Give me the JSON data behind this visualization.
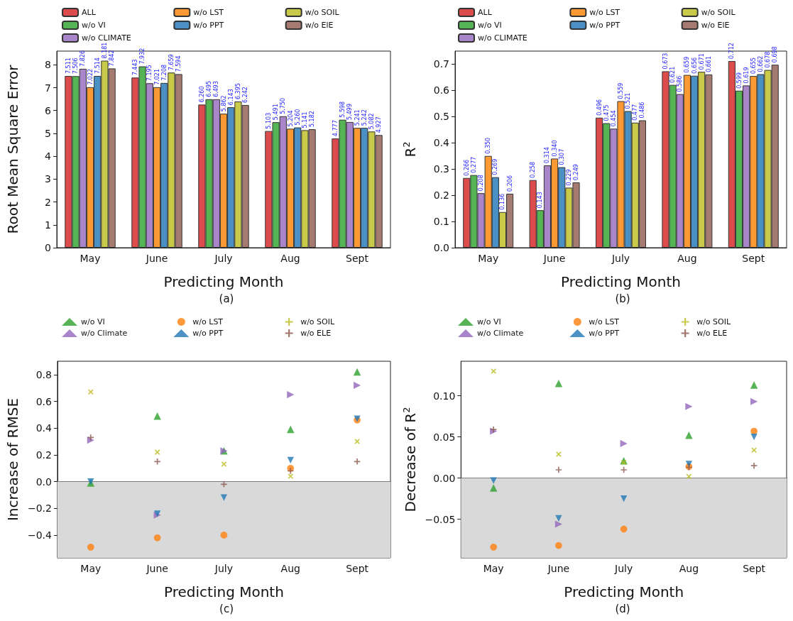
{
  "chart_data": [
    {
      "type": "bar",
      "xlabel": "Predicting Month",
      "ylabel": "Root Mean Square Error",
      "annotations": [
        "(a)"
      ],
      "categories": [
        "May",
        "June",
        "July",
        "Aug",
        "Sept"
      ],
      "ylim": [
        0,
        8.6
      ],
      "yticks": [
        0,
        1,
        2,
        3,
        4,
        5,
        6,
        7,
        8
      ],
      "legend": "top",
      "series": [
        {
          "name": "ALL",
          "color": "#dc4c4d",
          "values": [
            7.511,
            7.443,
            6.26,
            5.103,
            4.777
          ],
          "value_labels": [
            "7.511",
            "7.443",
            "6.260",
            "5.103",
            "4.777"
          ]
        },
        {
          "name": "w/o VI",
          "color": "#55b555",
          "values": [
            7.506,
            7.932,
            6.495,
            5.491,
            5.598
          ],
          "value_labels": [
            "7.506",
            "7.932",
            "6.495",
            "5.491",
            "5.598"
          ]
        },
        {
          "name": "w/o CLIMATE",
          "color": "#a985c9",
          "values": [
            7.826,
            7.195,
            6.493,
            5.75,
            5.499
          ],
          "value_labels": [
            "7.826",
            "7.195",
            "6.493",
            "5.750",
            "5.499"
          ]
        },
        {
          "name": "w/o LST",
          "color": "#ff9933",
          "values": [
            7.022,
            7.021,
            5.862,
            5.204,
            5.241
          ],
          "value_labels": [
            "7.022",
            "7.021",
            "5.862",
            "5.204",
            "5.241"
          ]
        },
        {
          "name": "w/o PPT",
          "color": "#4a90c4",
          "values": [
            7.514,
            7.208,
            6.143,
            5.26,
            5.242
          ],
          "value_labels": [
            "7.514",
            "7.208",
            "6.143",
            "5.260",
            "5.242"
          ]
        },
        {
          "name": "w/o SOIL",
          "color": "#c9c94a",
          "values": [
            8.181,
            7.659,
            6.395,
            5.141,
            5.082
          ],
          "value_labels": [
            "8.181",
            "7.659",
            "6.395",
            "5.141",
            "5.082"
          ]
        },
        {
          "name": "w/o ElE",
          "color": "#a57a70",
          "values": [
            7.842,
            7.594,
            6.242,
            5.182,
            4.927
          ],
          "value_labels": [
            "7.842",
            "7.594",
            "6.242",
            "5.182",
            "4.927"
          ]
        }
      ]
    },
    {
      "type": "bar",
      "xlabel": "Predicting Month",
      "ylabel": "R$^{2}$",
      "annotations": [
        "(b)"
      ],
      "categories": [
        "May",
        "June",
        "July",
        "Aug",
        "Sept"
      ],
      "ylim": [
        0,
        0.75
      ],
      "yticks": [
        {
          "value": 0,
          "label": "0.0"
        },
        0.1,
        0.2,
        0.3,
        0.4,
        0.5,
        0.6,
        0.7
      ],
      "legend": "top",
      "series": [
        {
          "name": "ALL",
          "color": "#dc4c4d",
          "values": [
            0.266,
            0.258,
            0.496,
            0.673,
            0.712
          ],
          "value_labels": [
            "0.266",
            "0.258",
            "0.496",
            "0.673",
            "0.712"
          ]
        },
        {
          "name": "w/o VI",
          "color": "#55b555",
          "values": [
            0.277,
            0.143,
            0.475,
            0.621,
            0.599
          ],
          "value_labels": [
            "0.277",
            "0.143",
            "0.475",
            "0.621",
            "0.599"
          ]
        },
        {
          "name": "w/o CLIMATE",
          "color": "#a985c9",
          "values": [
            0.208,
            0.314,
            0.454,
            0.586,
            0.619
          ],
          "value_labels": [
            "0.208",
            "0.314",
            "0.454",
            "0.586",
            "0.619"
          ]
        },
        {
          "name": "w/o LST",
          "color": "#ff9933",
          "values": [
            0.35,
            0.34,
            0.559,
            0.659,
            0.655
          ],
          "value_labels": [
            "0.350",
            "0.340",
            "0.559",
            "0.659",
            "0.655"
          ]
        },
        {
          "name": "w/o PPT",
          "color": "#4a90c4",
          "values": [
            0.269,
            0.307,
            0.521,
            0.656,
            0.662
          ],
          "value_labels": [
            "0.269",
            "0.307",
            "0.521",
            "0.656",
            "0.662"
          ]
        },
        {
          "name": "w/o SOIL",
          "color": "#c9c94a",
          "values": [
            0.136,
            0.229,
            0.477,
            0.671,
            0.678
          ],
          "value_labels": [
            "0.136",
            "0.229",
            "0.477",
            "0.671",
            "0.678"
          ]
        },
        {
          "name": "w/o ElE",
          "color": "#a57a70",
          "values": [
            0.206,
            0.249,
            0.486,
            0.661,
            0.698
          ],
          "value_labels": [
            "0.206",
            "0.249",
            "0.486",
            "0.661",
            "0.698"
          ]
        }
      ]
    },
    {
      "type": "scatter",
      "xlabel": "Predicting Month",
      "ylabel": "Increase of RMSE",
      "annotations": [
        "(c)"
      ],
      "categories": [
        "May",
        "June",
        "July",
        "Aug",
        "Sept"
      ],
      "ylim": [
        -0.57,
        0.9
      ],
      "yticks": [
        {
          "value": -0.4,
          "label": "−0.4"
        },
        {
          "value": -0.2,
          "label": "−0.2"
        },
        {
          "value": 0,
          "label": "0.0"
        },
        0.2,
        0.4,
        0.6,
        0.8
      ],
      "legend": "top",
      "bands": [
        {
          "axis": "y",
          "from": -0.57,
          "to": 0,
          "color": "#d9d9d9"
        }
      ],
      "series": [
        {
          "name": "w/o VI",
          "color": "#2ca02c",
          "marker": "triangle",
          "values": [
            -0.01,
            0.49,
            0.23,
            0.39,
            0.82
          ]
        },
        {
          "name": "w/o Climate",
          "color": "#9467bd",
          "marker": "triangle-right",
          "values": [
            0.31,
            -0.25,
            0.23,
            0.65,
            0.72
          ]
        },
        {
          "name": "w/o LST",
          "color": "#ff7f0e",
          "marker": "circle",
          "values": [
            -0.49,
            -0.42,
            -0.4,
            0.1,
            0.46
          ]
        },
        {
          "name": "w/o PPT",
          "color": "#1f77b4",
          "marker": "triangle-down",
          "values": [
            0.0,
            -0.24,
            -0.12,
            0.16,
            0.47
          ]
        },
        {
          "name": "w/o SOIL",
          "color": "#bcbd22",
          "marker": "x",
          "values": [
            0.67,
            0.22,
            0.13,
            0.04,
            0.3
          ]
        },
        {
          "name": "w/o ELE",
          "color": "#8c564b",
          "marker": "cross",
          "values": [
            0.33,
            0.15,
            -0.02,
            0.08,
            0.15
          ]
        }
      ]
    },
    {
      "type": "scatter",
      "xlabel": "Predicting Month",
      "ylabel": "Decrease of R$^{2}$",
      "annotations": [
        "(d)"
      ],
      "categories": [
        "May",
        "June",
        "July",
        "Aug",
        "Sept"
      ],
      "ylim": [
        -0.097,
        0.142
      ],
      "yticks": [
        {
          "value": -0.05,
          "label": "−0.05"
        },
        {
          "value": 0,
          "label": "0.00"
        },
        {
          "value": 0.05,
          "label": "0.05"
        },
        {
          "value": 0.1,
          "label": "0.10"
        }
      ],
      "legend": "top",
      "bands": [
        {
          "axis": "y",
          "from": -0.097,
          "to": 0,
          "color": "#d9d9d9"
        }
      ],
      "series": [
        {
          "name": "w/o VI",
          "color": "#2ca02c",
          "marker": "triangle",
          "values": [
            -0.012,
            0.115,
            0.021,
            0.052,
            0.113
          ]
        },
        {
          "name": "w/o Climate",
          "color": "#9467bd",
          "marker": "triangle-right",
          "values": [
            0.057,
            -0.056,
            0.042,
            0.087,
            0.093
          ]
        },
        {
          "name": "w/o LST",
          "color": "#ff7f0e",
          "marker": "circle",
          "values": [
            -0.084,
            -0.082,
            -0.062,
            0.014,
            0.057
          ]
        },
        {
          "name": "w/o PPT",
          "color": "#1f77b4",
          "marker": "triangle-down",
          "values": [
            -0.003,
            -0.049,
            -0.025,
            0.017,
            0.05
          ]
        },
        {
          "name": "w/o SOIL",
          "color": "#bcbd22",
          "marker": "x",
          "values": [
            0.13,
            0.029,
            0.019,
            0.002,
            0.034
          ]
        },
        {
          "name": "w/o ELE",
          "color": "#8c564b",
          "marker": "cross",
          "values": [
            0.059,
            0.01,
            0.01,
            0.013,
            0.015
          ]
        }
      ]
    }
  ]
}
